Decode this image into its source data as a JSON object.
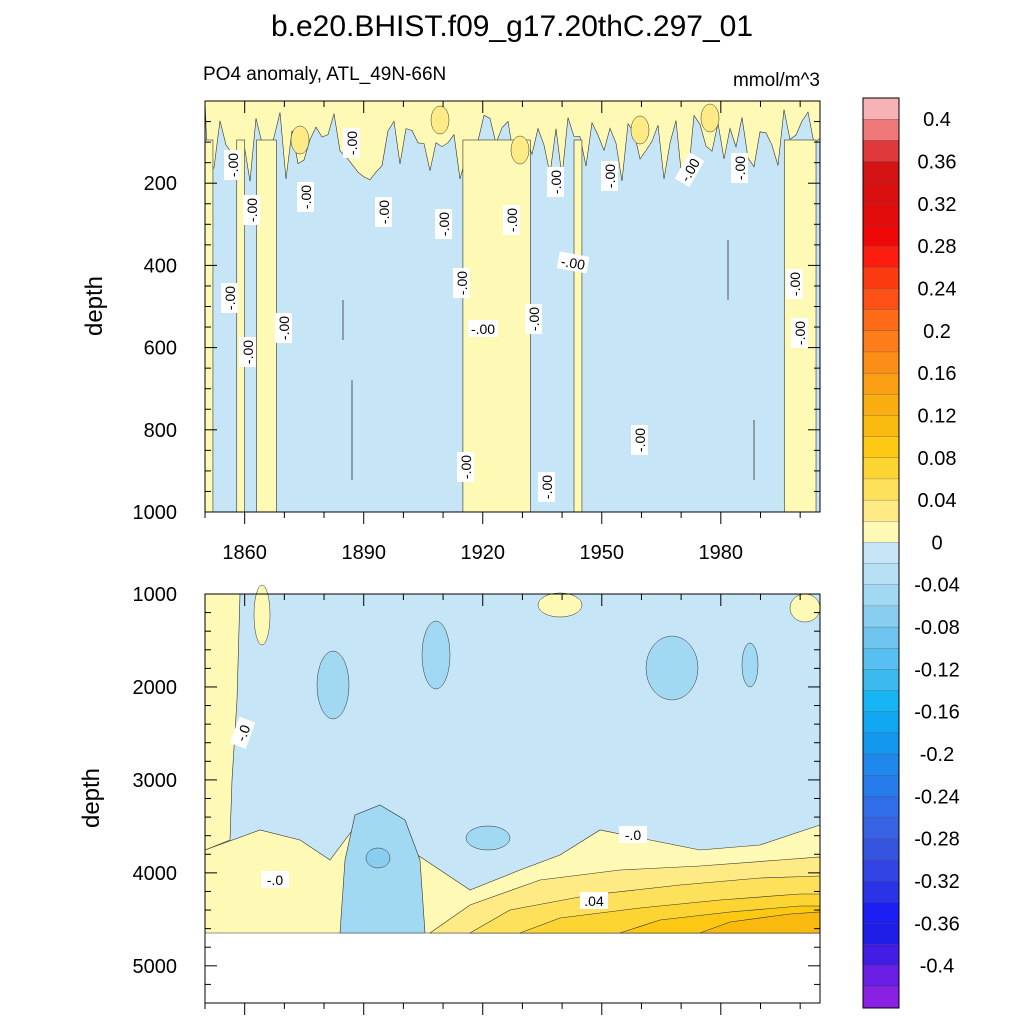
{
  "chart_data": [
    {
      "type": "heatmap",
      "title": "b.e20.BHIST.f09_g17.20thC.297_01",
      "subtitle_left": "PO4 anomaly, ATL_49N-66N",
      "subtitle_right": "mmol/m^3",
      "ylabel": "depth",
      "xlabel": "",
      "xlim": [
        1850,
        2005
      ],
      "ylim": [
        1000,
        0
      ],
      "x_ticks": [
        1860,
        1890,
        1920,
        1950,
        1980
      ],
      "x_tick_labels": [
        "1860",
        "1890",
        "1920",
        "1950",
        "1980"
      ],
      "y_ticks": [
        200,
        400,
        600,
        800,
        1000
      ],
      "y_tick_labels": [
        "200",
        "400",
        "600",
        "800",
        "1000"
      ],
      "contour_labels": [
        "-.00",
        "-.00",
        "-.00",
        "-.00",
        "-.00",
        "-.00",
        "-.00",
        "-.00",
        "-.00",
        "-.00",
        "-.00",
        "-.00",
        "-.00",
        "-.00",
        "-.00",
        "-.00",
        "-.00",
        "-.00",
        "-.00",
        "-.00",
        "-.00",
        "-.00",
        "-.00"
      ],
      "positive_intervals": [
        [
          1850,
          1852
        ],
        [
          1858,
          1860
        ],
        [
          1863,
          1868
        ],
        [
          1915,
          1932
        ],
        [
          1943,
          1945
        ],
        [
          1996,
          2004
        ]
      ]
    },
    {
      "type": "heatmap",
      "ylabel": "depth",
      "xlabel": "",
      "xlim": [
        1850,
        2005
      ],
      "ylim": [
        5400,
        1000
      ],
      "x_ticks": [
        1860,
        1890,
        1920,
        1950,
        1980
      ],
      "y_ticks": [
        1000,
        2000,
        3000,
        4000,
        5000
      ],
      "y_tick_labels": [
        "1000",
        "2000",
        "3000",
        "4000",
        "5000"
      ],
      "data_bottom_depth": 4620,
      "contour_labels": [
        "-.0",
        "-.0",
        "-.0",
        ".04"
      ]
    }
  ],
  "colorbar": {
    "labels": [
      "0.4",
      "0.36",
      "0.32",
      "0.28",
      "0.24",
      "0.2",
      "0.16",
      "0.12",
      "0.08",
      "0.04",
      "0",
      "-0.04",
      "-0.08",
      "-0.12",
      "-0.16",
      "-0.2",
      "-0.24",
      "-0.28",
      "-0.32",
      "-0.36",
      "-0.4"
    ],
    "colors": [
      "#f8b2b6",
      "#ef787a",
      "#e0393c",
      "#d41414",
      "#da1010",
      "#e30c0c",
      "#f00808",
      "#fc1d10",
      "#fb3a12",
      "#fc5016",
      "#fd6a18",
      "#fd7d1a",
      "#fc8e17",
      "#fa9f14",
      "#f9ad10",
      "#fab90e",
      "#fcc812",
      "#fdd532",
      "#fde15a",
      "#feeb85",
      "#fef9b4",
      "#c6e5f6",
      "#b7e0f5",
      "#a2d9f2",
      "#89cdf0",
      "#6fc4ef",
      "#57c0f0",
      "#3cbaf0",
      "#16b6f4",
      "#10a6f2",
      "#1497ef",
      "#1f88ec",
      "#277ceb",
      "#306de8",
      "#3763e2",
      "#3555e0",
      "#3245e4",
      "#2b33e6",
      "#1d1ef3",
      "#1e1ee8",
      "#431de6",
      "#6a1ee3",
      "#8a20e4"
    ]
  }
}
